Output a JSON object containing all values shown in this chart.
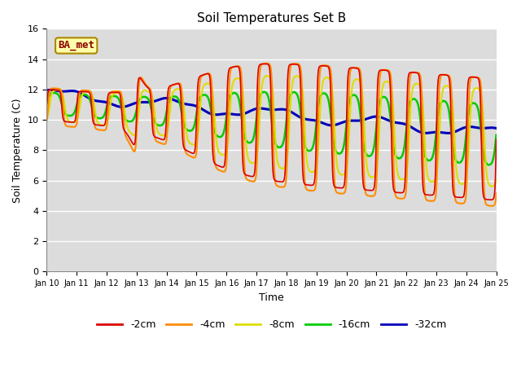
{
  "title": "Soil Temperatures Set B",
  "xlabel": "Time",
  "ylabel": "Soil Temperature (C)",
  "ylim": [
    0,
    16
  ],
  "yticks": [
    0,
    2,
    4,
    6,
    8,
    10,
    12,
    14,
    16
  ],
  "background_color": "#dcdcdc",
  "legend_label": "BA_met",
  "series_colors": {
    "-2cm": "#dd0000",
    "-4cm": "#ff8c00",
    "-8cm": "#dddd00",
    "-16cm": "#00cc00",
    "-32cm": "#0000bb"
  },
  "series_linewidths": {
    "-2cm": 1.2,
    "-4cm": 1.5,
    "-8cm": 1.5,
    "-16cm": 1.8,
    "-32cm": 2.2
  },
  "xtick_labels": [
    "Jan 10",
    "Jan 11",
    "Jan 12",
    "Jan 13",
    "Jan 14",
    "Jan 15",
    "Jan 16",
    "Jan 17",
    "Jan 18",
    "Jan 19",
    "Jan 20",
    "Jan 21",
    "Jan 22",
    "Jan 23",
    "Jan 24",
    "Jan 25"
  ],
  "n_points": 1440,
  "time_days": 15
}
